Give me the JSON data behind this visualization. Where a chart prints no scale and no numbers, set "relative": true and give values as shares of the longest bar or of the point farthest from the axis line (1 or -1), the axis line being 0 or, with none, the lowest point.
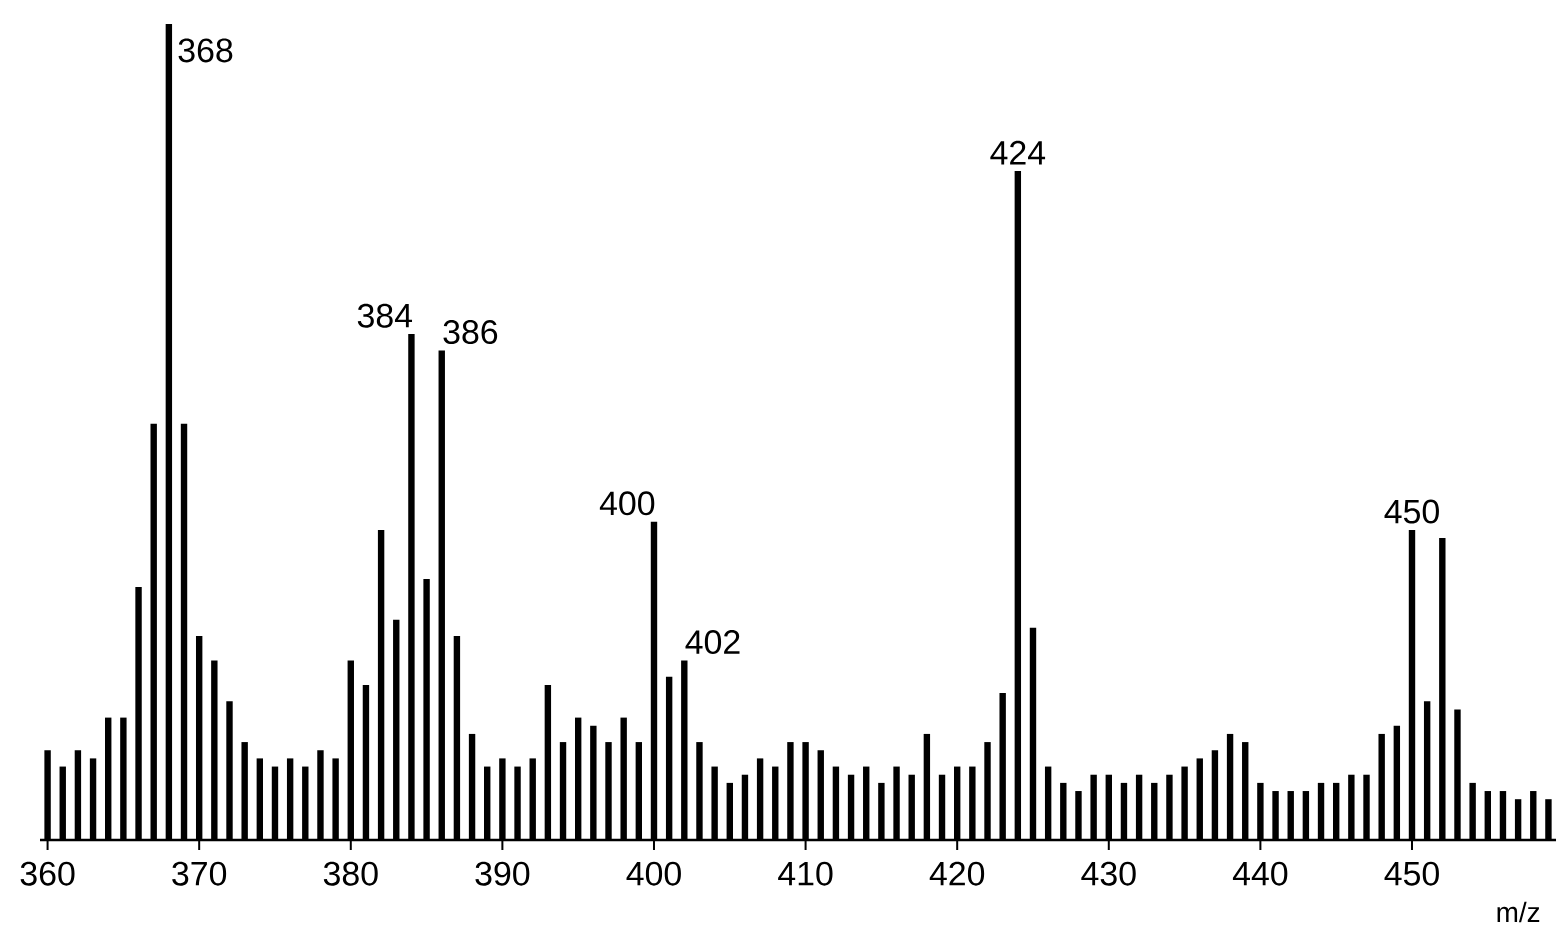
{
  "chart_data": {
    "type": "bar",
    "relative": true,
    "xlabel": "m/z",
    "x": [
      360,
      361,
      362,
      363,
      364,
      365,
      366,
      367,
      368,
      369,
      370,
      371,
      372,
      373,
      374,
      375,
      376,
      377,
      378,
      379,
      380,
      381,
      382,
      383,
      384,
      385,
      386,
      387,
      388,
      389,
      390,
      391,
      392,
      393,
      394,
      395,
      396,
      397,
      398,
      399,
      400,
      401,
      402,
      403,
      404,
      405,
      406,
      407,
      408,
      409,
      410,
      411,
      412,
      413,
      414,
      415,
      416,
      417,
      418,
      419,
      420,
      421,
      422,
      423,
      424,
      425,
      426,
      427,
      428,
      429,
      430,
      431,
      432,
      433,
      434,
      435,
      436,
      437,
      438,
      439,
      440,
      441,
      442,
      443,
      444,
      445,
      446,
      447,
      448,
      449,
      450,
      451,
      452,
      453,
      454,
      455,
      456,
      457,
      458,
      459
    ],
    "values": [
      0.11,
      0.09,
      0.11,
      0.1,
      0.15,
      0.15,
      0.31,
      0.51,
      1,
      0.51,
      0.25,
      0.22,
      0.17,
      0.12,
      0.1,
      0.09,
      0.1,
      0.09,
      0.11,
      0.1,
      0.22,
      0.19,
      0.38,
      0.27,
      0.62,
      0.32,
      0.6,
      0.25,
      0.13,
      0.09,
      0.1,
      0.09,
      0.1,
      0.19,
      0.12,
      0.15,
      0.14,
      0.12,
      0.15,
      0.12,
      0.39,
      0.2,
      0.22,
      0.12,
      0.09,
      0.07,
      0.08,
      0.1,
      0.09,
      0.12,
      0.12,
      0.11,
      0.09,
      0.08,
      0.09,
      0.07,
      0.09,
      0.08,
      0.13,
      0.08,
      0.09,
      0.09,
      0.12,
      0.18,
      0.82,
      0.26,
      0.09,
      0.07,
      0.06,
      0.08,
      0.08,
      0.07,
      0.08,
      0.07,
      0.08,
      0.09,
      0.1,
      0.11,
      0.13,
      0.12,
      0.07,
      0.06,
      0.06,
      0.06,
      0.07,
      0.07,
      0.08,
      0.08,
      0.13,
      0.14,
      0.38,
      0.17,
      0.37,
      0.16,
      0.07,
      0.06,
      0.06,
      0.05,
      0.06,
      0.05
    ],
    "color": "#000000",
    "xlim": [
      359.5,
      459.5
    ],
    "xticks": [
      360,
      370,
      380,
      390,
      400,
      410,
      420,
      430,
      440,
      450
    ],
    "annotations": [
      {
        "text": "368",
        "x": 368,
        "y": 1
      },
      {
        "text": "384",
        "x": 384,
        "y": 0.62
      },
      {
        "text": "386",
        "x": 386,
        "y": 0.6
      },
      {
        "text": "400",
        "x": 400,
        "y": 0.39
      },
      {
        "text": "402",
        "x": 402,
        "y": 0.22
      },
      {
        "text": "424",
        "x": 424,
        "y": 0.82
      },
      {
        "text": "450",
        "x": 450,
        "y": 0.38
      }
    ]
  }
}
